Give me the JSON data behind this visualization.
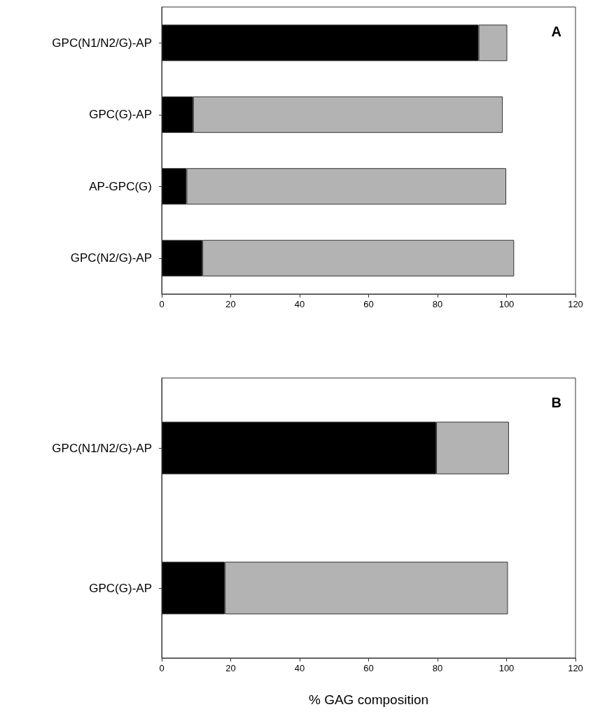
{
  "chart_data": [
    {
      "type": "bar",
      "orientation": "horizontal",
      "stacked": true,
      "title": "A",
      "categories": [
        "GPC(N1/N2/G)-AP",
        "GPC(G)-AP",
        "AP-GPC(G)",
        "GPC(N2/G)-AP"
      ],
      "series": [
        {
          "color": "#000000",
          "values": [
            91.9,
            9.1,
            7.2,
            11.8
          ]
        },
        {
          "color": "#b3b3b3",
          "values": [
            8.3,
            89.8,
            92.7,
            90.4
          ]
        }
      ],
      "xlim": [
        0,
        120
      ],
      "xticks": [
        0,
        20,
        40,
        60,
        80,
        100,
        120
      ]
    },
    {
      "type": "bar",
      "orientation": "horizontal",
      "stacked": true,
      "title": "B",
      "xlabel": "% GAG composition",
      "categories": [
        "GPC(N1/N2/G)-AP",
        "GPC(G)-AP"
      ],
      "series": [
        {
          "color": "#000000",
          "values": [
            79.6,
            18.3
          ]
        },
        {
          "color": "#b3b3b3",
          "values": [
            21.1,
            82.1
          ]
        }
      ],
      "xlim": [
        0,
        120
      ],
      "xticks": [
        0,
        20,
        40,
        60,
        80,
        100,
        120
      ]
    }
  ]
}
